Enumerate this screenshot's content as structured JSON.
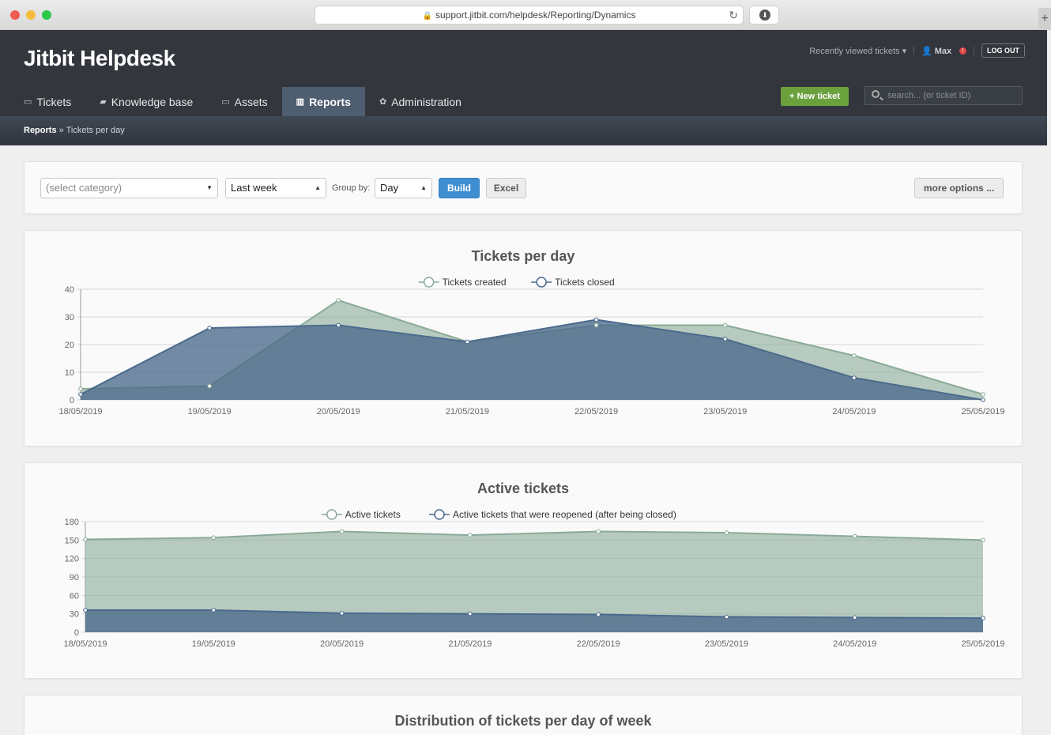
{
  "browser": {
    "url": "support.jitbit.com/helpdesk/Reporting/Dynamics"
  },
  "header": {
    "logo": "Jitbit Helpdesk",
    "recent": "Recently viewed tickets",
    "user": "Max",
    "logout": "LOG OUT",
    "new_ticket": "+ New ticket",
    "search_placeholder": "search... (or ticket ID)"
  },
  "nav": {
    "tabs": [
      {
        "label": "Tickets",
        "icon": "inbox-icon"
      },
      {
        "label": "Knowledge base",
        "icon": "book-icon"
      },
      {
        "label": "Assets",
        "icon": "laptop-icon"
      },
      {
        "label": "Reports",
        "icon": "bar-chart-icon"
      },
      {
        "label": "Administration",
        "icon": "gear-icon"
      }
    ],
    "active": "Reports"
  },
  "breadcrumb": {
    "root": "Reports",
    "separator": "»",
    "current": "Tickets per day"
  },
  "filters": {
    "category": "(select category)",
    "period": "Last week",
    "group_by_label": "Group by:",
    "group_by": "Day",
    "build": "Build",
    "excel": "Excel",
    "more": "more options ..."
  },
  "colors": {
    "series_a": "#8aaa98",
    "series_b": "#4b6a8c"
  },
  "chart_data": [
    {
      "type": "area",
      "title": "Tickets per day",
      "x": [
        "18/05/2019",
        "19/05/2019",
        "20/05/2019",
        "21/05/2019",
        "22/05/2019",
        "23/05/2019",
        "24/05/2019",
        "25/05/2019"
      ],
      "ylim": [
        0,
        40
      ],
      "yticks": [
        0,
        10,
        20,
        30,
        40
      ],
      "grid": true,
      "legend": "top-center",
      "series": [
        {
          "name": "Tickets created",
          "values": [
            4,
            5,
            36,
            21,
            27,
            27,
            16,
            2
          ]
        },
        {
          "name": "Tickets closed",
          "values": [
            2,
            26,
            27,
            21,
            29,
            22,
            8,
            0
          ]
        }
      ]
    },
    {
      "type": "area",
      "title": "Active tickets",
      "x": [
        "18/05/2019",
        "19/05/2019",
        "20/05/2019",
        "21/05/2019",
        "22/05/2019",
        "23/05/2019",
        "24/05/2019",
        "25/05/2019"
      ],
      "ylim": [
        0,
        180
      ],
      "yticks": [
        0,
        30,
        60,
        90,
        120,
        150,
        180
      ],
      "grid": true,
      "legend": "top-center",
      "series": [
        {
          "name": "Active tickets",
          "values": [
            151,
            154,
            164,
            158,
            164,
            162,
            156,
            150
          ]
        },
        {
          "name": "Active tickets that were reopened (after being closed)",
          "values": [
            36,
            36,
            31,
            30,
            29,
            25,
            24,
            23
          ]
        }
      ]
    }
  ],
  "third_chart": {
    "title": "Distribution of tickets per day of week"
  }
}
